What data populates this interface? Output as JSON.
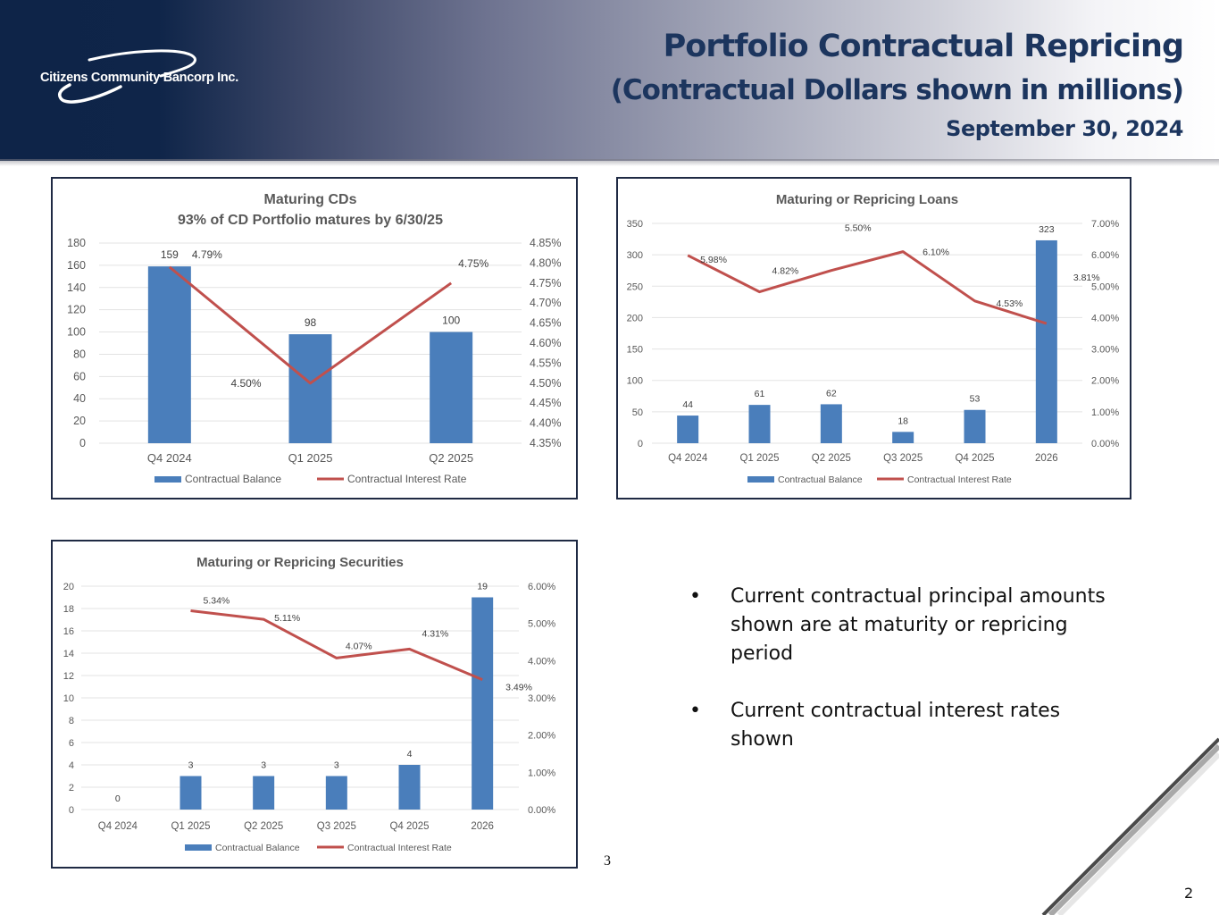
{
  "header": {
    "logo_text": "Citizens Community Bancorp Inc.",
    "title_line1": "Portfolio Contractual Repricing",
    "title_line2": "(Contractual Dollars shown in millions)",
    "title_line3": "September 30, 2024"
  },
  "colors": {
    "navy": "#1c355e",
    "bar_blue": "#4a7ebb",
    "line_red": "#c0504d",
    "grid": "#e3e3e3",
    "axis_text": "#595959"
  },
  "bullets": [
    "Current contractual principal amounts shown are at maturity or repricing period",
    "Current contractual interest rates shown"
  ],
  "bullet_symbol": "•",
  "slide_label": "3",
  "page_number": "2",
  "chart_data": [
    {
      "id": "cds",
      "type": "bar",
      "title": "Maturing CDs",
      "subtitle": "93% of CD Portfolio matures by 6/30/25",
      "categories": [
        "Q4 2024",
        "Q1 2025",
        "Q2 2025"
      ],
      "series": [
        {
          "name": "Contractual Balance",
          "type": "bar",
          "axis": "left",
          "values": [
            159,
            98,
            100
          ],
          "labels": [
            "159",
            "98",
            "100"
          ]
        },
        {
          "name": "Contractual Interest Rate",
          "type": "line",
          "axis": "right",
          "values": [
            4.79,
            4.5,
            4.75
          ],
          "labels": [
            "4.79%",
            "4.50%",
            "4.75%"
          ]
        }
      ],
      "y_left": {
        "min": 0,
        "max": 180,
        "step": 20,
        "ticks": [
          "0",
          "20",
          "40",
          "60",
          "80",
          "100",
          "120",
          "140",
          "160",
          "180"
        ]
      },
      "y_right": {
        "min": 4.35,
        "max": 4.85,
        "step": 0.05,
        "ticks": [
          "4.35%",
          "4.40%",
          "4.45%",
          "4.50%",
          "4.55%",
          "4.60%",
          "4.65%",
          "4.70%",
          "4.75%",
          "4.80%",
          "4.85%"
        ]
      },
      "grid": true,
      "legend": "bottom"
    },
    {
      "id": "loans",
      "type": "bar",
      "title": "Maturing or Repricing Loans",
      "categories": [
        "Q4 2024",
        "Q1 2025",
        "Q2 2025",
        "Q3 2025",
        "Q4 2025",
        "2026"
      ],
      "series": [
        {
          "name": "Contractual Balance",
          "type": "bar",
          "axis": "left",
          "values": [
            44,
            61,
            62,
            18,
            53,
            323
          ],
          "labels": [
            "44",
            "61",
            "62",
            "18",
            "53",
            "323"
          ]
        },
        {
          "name": "Contractual Interest Rate",
          "type": "line",
          "axis": "right",
          "values": [
            5.98,
            4.82,
            5.5,
            6.1,
            4.53,
            3.81
          ],
          "labels": [
            "5.98%",
            "4.82%",
            "5.50%",
            "6.10%",
            "4.53%",
            "3.81%"
          ]
        }
      ],
      "y_left": {
        "min": 0,
        "max": 350,
        "step": 50,
        "ticks": [
          "0",
          "50",
          "100",
          "150",
          "200",
          "250",
          "300",
          "350"
        ]
      },
      "y_right": {
        "min": 0,
        "max": 7,
        "step": 1,
        "ticks": [
          "0.00%",
          "1.00%",
          "2.00%",
          "3.00%",
          "4.00%",
          "5.00%",
          "6.00%",
          "7.00%"
        ]
      },
      "grid": true,
      "legend": "bottom"
    },
    {
      "id": "securities",
      "type": "bar",
      "title": "Maturing or Repricing Securities",
      "categories": [
        "Q4 2024",
        "Q1 2025",
        "Q2 2025",
        "Q3 2025",
        "Q4 2025",
        "2026"
      ],
      "series": [
        {
          "name": "Contractual Balance",
          "type": "bar",
          "axis": "left",
          "values": [
            0,
            3,
            3,
            3,
            4,
            19
          ],
          "labels": [
            "0",
            "3",
            "3",
            "3",
            "4",
            "19"
          ]
        },
        {
          "name": "Contractual Interest Rate",
          "type": "line",
          "axis": "right",
          "values": [
            null,
            5.34,
            5.11,
            4.07,
            4.31,
            3.49
          ],
          "labels": [
            "",
            "5.34%",
            "5.11%",
            "4.07%",
            "4.31%",
            "3.49%"
          ]
        }
      ],
      "y_left": {
        "min": 0,
        "max": 20,
        "step": 2,
        "ticks": [
          "0",
          "2",
          "4",
          "6",
          "8",
          "10",
          "12",
          "14",
          "16",
          "18",
          "20"
        ]
      },
      "y_right": {
        "min": 0,
        "max": 6,
        "step": 1,
        "ticks": [
          "0.00%",
          "1.00%",
          "2.00%",
          "3.00%",
          "4.00%",
          "5.00%",
          "6.00%"
        ]
      },
      "grid": true,
      "legend": "bottom"
    }
  ]
}
